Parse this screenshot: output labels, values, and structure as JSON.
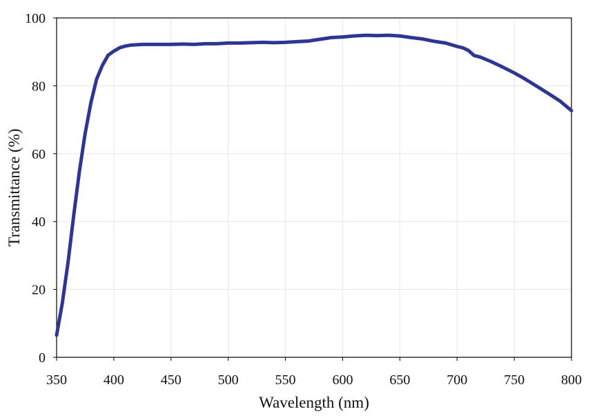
{
  "chart_data": {
    "type": "line",
    "title": "",
    "xlabel": "Wavelength (nm)",
    "ylabel": "Transmittance (%)",
    "xlim": [
      350,
      800
    ],
    "ylim": [
      0,
      100
    ],
    "x_ticks": [
      350,
      400,
      450,
      500,
      550,
      600,
      650,
      700,
      750,
      800
    ],
    "y_ticks": [
      0,
      20,
      40,
      60,
      80,
      100
    ],
    "x_tick_labels": [
      "350",
      "400",
      "450",
      "500",
      "550",
      "600",
      "650",
      "700",
      "750",
      "800"
    ],
    "y_tick_labels": [
      "0",
      "20",
      "40",
      "60",
      "80",
      "100"
    ],
    "grid": true,
    "legend": "none",
    "line_color": "#2e3592",
    "series": [
      {
        "x": [
          350,
          355,
          360,
          365,
          370,
          375,
          380,
          385,
          390,
          395,
          400,
          405,
          410,
          415,
          420,
          425,
          430,
          435,
          440,
          450,
          460,
          470,
          480,
          490,
          500,
          510,
          520,
          530,
          540,
          550,
          560,
          570,
          580,
          590,
          600,
          610,
          620,
          630,
          640,
          650,
          660,
          670,
          680,
          690,
          700,
          705,
          710,
          715,
          720,
          730,
          740,
          750,
          760,
          770,
          780,
          790,
          800
        ],
        "y": [
          6.5,
          16,
          28,
          42,
          55,
          66,
          75,
          82,
          86,
          89,
          90.2,
          91.2,
          91.7,
          92.0,
          92.1,
          92.2,
          92.2,
          92.2,
          92.2,
          92.2,
          92.3,
          92.2,
          92.4,
          92.4,
          92.6,
          92.6,
          92.7,
          92.8,
          92.7,
          92.8,
          93.0,
          93.2,
          93.7,
          94.2,
          94.4,
          94.7,
          94.9,
          94.8,
          94.9,
          94.7,
          94.2,
          93.8,
          93.1,
          92.6,
          91.6,
          91.2,
          90.4,
          88.9,
          88.5,
          87.1,
          85.5,
          83.8,
          81.9,
          79.8,
          77.7,
          75.5,
          72.7
        ]
      }
    ]
  }
}
